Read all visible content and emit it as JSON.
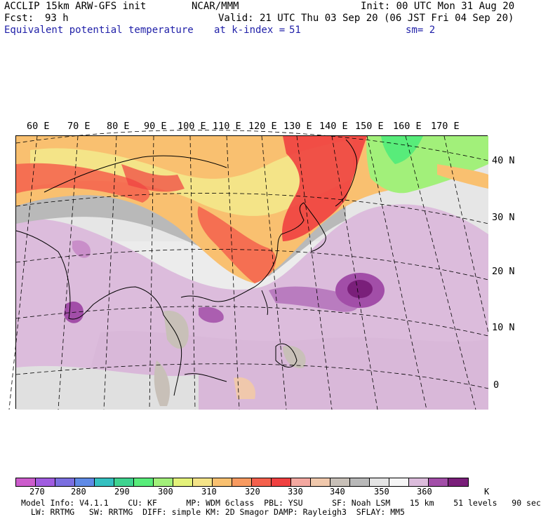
{
  "header": {
    "model": "ACCLIP 15km ARW-GFS init",
    "org": "NCAR/MMM",
    "init": "Init: 00 UTC Mon 31 Aug 20",
    "fcst_label": "Fcst:",
    "fcst_value": "93 h",
    "valid": "Valid: 21 UTC Thu 03 Sep 20 (06 JST Fri 04 Sep 20)",
    "field": "Equivalent potential temperature",
    "level": "at k-index =",
    "level_value": "51",
    "smooth": "sm= 2"
  },
  "map": {
    "lon_labels": [
      "60 E",
      "70 E",
      "80 E",
      "90 E",
      "100 E",
      "110 E",
      "120 E",
      "130 E",
      "140 E",
      "150 E",
      "160 E",
      "170 E"
    ],
    "lat_labels": [
      "40 N",
      "30 N",
      "20 N",
      "10 N",
      "0"
    ],
    "storm": "typhoon-center"
  },
  "legend": {
    "ticks": [
      "270",
      "280",
      "290",
      "300",
      "310",
      "320",
      "330",
      "340",
      "350",
      "360"
    ],
    "unit": "K",
    "colors": [
      "#cc5ccc",
      "#a05ce0",
      "#7b6fe0",
      "#5f8ae6",
      "#34c0c0",
      "#3ed38f",
      "#58ec7a",
      "#a2f07a",
      "#e4f27a",
      "#f4e488",
      "#f9c070",
      "#f89a60",
      "#f4604c",
      "#f04040",
      "#f4a8a0",
      "#f0c8ac",
      "#c8c0b8",
      "#b8b8b8",
      "#e4e4e4",
      "#f6f6f6",
      "#dcbcdc",
      "#a24ea8",
      "#7a1f7a"
    ]
  },
  "footer": {
    "line1": "Model Info: V4.1.1    CU: KF      MP: WDM 6class  PBL: YSU      SF: Noah LSM    15 km    51 levels   90 sec",
    "line2": "  LW: RRTMG   SW: RRTMG  DIFF: simple KM: 2D Smagor DAMP: Rayleigh3  SFLAY: MM5"
  }
}
